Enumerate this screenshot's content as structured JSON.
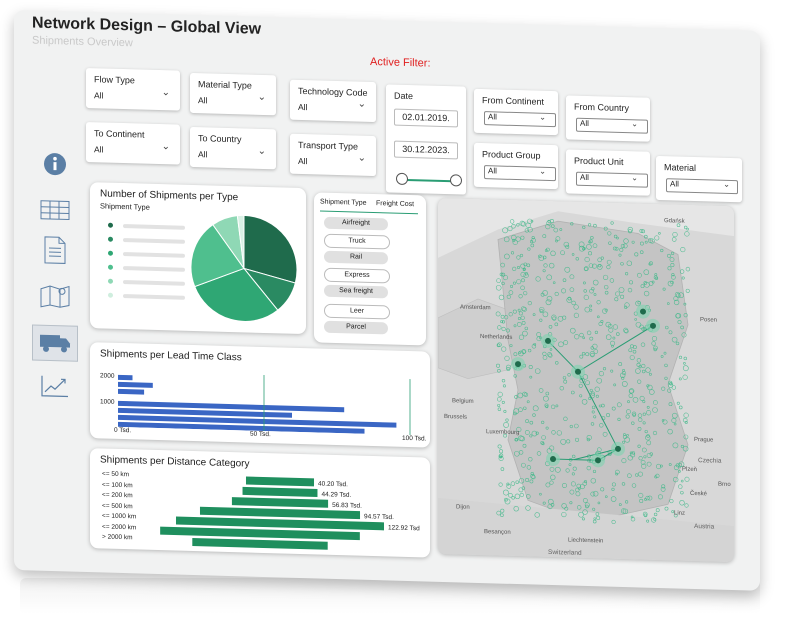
{
  "header": {
    "title": "Network Design – Global View",
    "subtitle": "Shipments Overview",
    "active_filter": "Active Filter:"
  },
  "filters": {
    "flow_type": {
      "label": "Flow Type",
      "value": "All"
    },
    "material_type": {
      "label": "Material Type",
      "value": "All"
    },
    "technology_code": {
      "label": "Technology Code",
      "value": "All"
    },
    "date": {
      "label": "Date",
      "start": "02.01.2019.",
      "end": "30.12.2023."
    },
    "from_continent": {
      "label": "From Continent",
      "value": "All"
    },
    "from_country": {
      "label": "From Country",
      "value": "All"
    },
    "to_continent": {
      "label": "To Continent",
      "value": "All"
    },
    "to_country": {
      "label": "To Country",
      "value": "All"
    },
    "transport_type": {
      "label": "Transport Type",
      "value": "All"
    },
    "product_group": {
      "label": "Product Group",
      "value": "All"
    },
    "product_unit": {
      "label": "Product Unit",
      "value": "All"
    },
    "material": {
      "label": "Material",
      "value": "All"
    }
  },
  "sidebar": {
    "icons": [
      "info-icon",
      "table-icon",
      "document-icon",
      "map-icon",
      "truck-icon",
      "trend-chart-icon"
    ],
    "active": "truck-icon"
  },
  "colors": {
    "accent": "#2a9d74",
    "dark_green": "#1f6b4c",
    "bar_blue": "#3a66c4",
    "alert_red": "#e02020"
  },
  "shipment_type_card": {
    "title": "Number of Shipments per Type",
    "legend_title": "Shipment Type"
  },
  "shipment_table": {
    "col1": "Shipment Type",
    "col2": "Freight Cost",
    "rows": [
      "Airfreight",
      "Truck",
      "Rail",
      "Express",
      "Sea freight",
      "Leer",
      "Parcel"
    ]
  },
  "lead_time_card": {
    "title": "Shipments per Lead Time Class",
    "y_labels": [
      "2000",
      "1000"
    ],
    "x_labels": [
      "0 Tsd.",
      "50 Tsd.",
      "100 Tsd."
    ]
  },
  "distance_card": {
    "title": "Shipments per Distance Category"
  },
  "map": {
    "labels": {
      "netherlands": "Netherlands",
      "belgium": "Belgium",
      "luxembourg": "Luxembourg",
      "czechia": "Czechia",
      "austria": "Austria",
      "switzerland": "Switzerland",
      "liechtenstein": "Liechtenstein",
      "amsterdam": "Amsterdam",
      "brussels": "Brussels",
      "prague": "Prague",
      "dijon": "Dijon",
      "besancon": "Besançon",
      "linz": "Linz",
      "ceske": "České",
      "plzen": "Plzeň",
      "brno": "Brno",
      "gdansk": "Gdańsk",
      "posen": "Posen"
    }
  },
  "chart_data": [
    {
      "type": "pie",
      "title": "Number of Shipments per Type",
      "legend_title": "Shipment Type",
      "values": [
        29,
        10,
        30,
        21,
        8,
        2
      ],
      "colors": [
        "#1f6b4c",
        "#2a8a62",
        "#2fa774",
        "#4fbf8e",
        "#8fd8b5",
        "#d9f1e5"
      ]
    },
    {
      "type": "bar",
      "orientation": "horizontal",
      "title": "Shipments per Lead Time Class",
      "y_ticks": [
        "2000",
        "1000"
      ],
      "x_ticks": [
        "0 Tsd.",
        "50 Tsd.",
        "100 Tsd."
      ],
      "xlim": [
        0,
        100
      ],
      "values": [
        5,
        12,
        9,
        78,
        60,
        96,
        85
      ],
      "color": "#3a66c4"
    },
    {
      "type": "bar",
      "orientation": "horizontal",
      "title": "Shipments per Distance Category",
      "categories": [
        "<= 50 km",
        "<= 100 km",
        "<= 200 km",
        "<= 500 km",
        "<= 1000 km",
        "<= 2000 km",
        "> 2000 km"
      ],
      "value_labels": [
        "40.20 Tsd.",
        "44.29 Tsd.",
        "56.83 Tsd.",
        "94.57 Tsd.",
        "122.92 Tsd.",
        "",
        ""
      ],
      "values": [
        40.2,
        44.29,
        56.83,
        94.57,
        122.92,
        118,
        80
      ],
      "color": "#1f8f5e"
    }
  ]
}
